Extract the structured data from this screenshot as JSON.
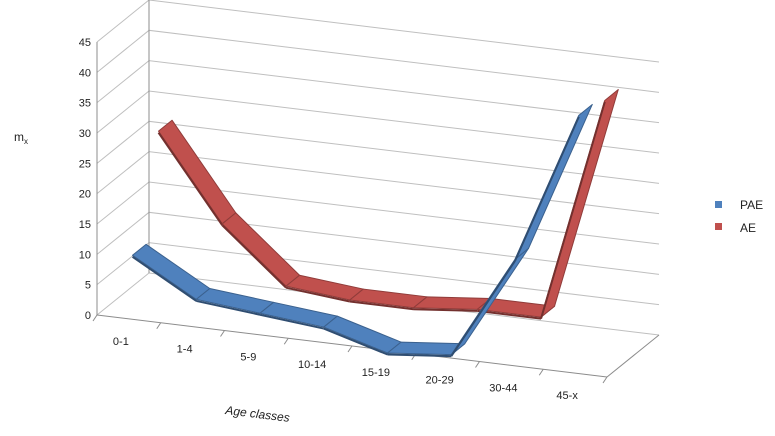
{
  "chart_data": {
    "type": "line",
    "projection": "3d",
    "categories": [
      "0-1",
      "1-4",
      "5-9",
      "10-14",
      "15-19",
      "20-29",
      "30-44",
      "45-x"
    ],
    "series": [
      {
        "name": "PAE",
        "color": "#4f81bd",
        "values": [
          10,
          4,
          3,
          2,
          -1,
          0,
          17,
          42
        ]
      },
      {
        "name": "AE",
        "color": "#c0504d",
        "values": [
          27,
          13,
          4,
          3,
          3,
          4,
          4,
          41
        ]
      }
    ],
    "ylabel": "m",
    "ylabel_sub": "x",
    "xlabel": "Age classes",
    "ylim": [
      0,
      45
    ],
    "yticks": [
      0,
      5,
      10,
      15,
      20,
      25,
      30,
      35,
      40,
      45
    ],
    "grid": true,
    "legend": "right"
  }
}
